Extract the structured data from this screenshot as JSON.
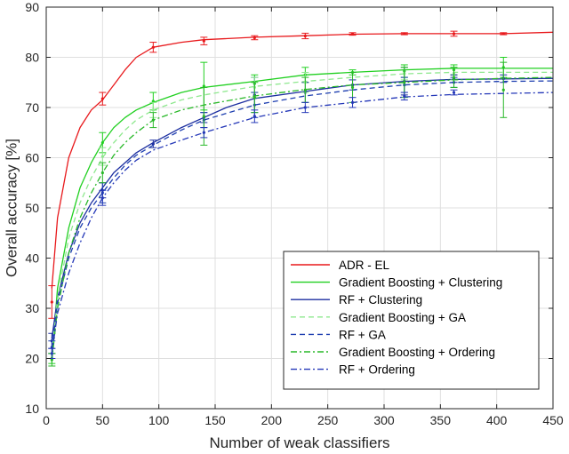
{
  "chart_data": {
    "type": "line",
    "xlabel": "Number of weak classifiers",
    "ylabel": "Overall accuracy [%]",
    "xlim": [
      0,
      450
    ],
    "ylim": [
      10,
      90
    ],
    "x_ticks": [
      0,
      50,
      100,
      150,
      200,
      250,
      300,
      350,
      400,
      450
    ],
    "y_ticks": [
      10,
      20,
      30,
      40,
      50,
      60,
      70,
      80,
      90
    ],
    "grid": true,
    "legend_position": "bottom-right",
    "series": [
      {
        "name": "ADR - EL",
        "color": "#e8191c",
        "dash": "solid",
        "x": [
          5,
          10,
          15,
          20,
          30,
          40,
          50,
          60,
          70,
          80,
          95,
          120,
          140,
          185,
          230,
          272,
          318,
          362,
          406,
          450
        ],
        "y": [
          34,
          48,
          54,
          60,
          66,
          69.5,
          71.5,
          74.5,
          77.5,
          80,
          82,
          83,
          83.5,
          84,
          84.3,
          84.6,
          84.7,
          84.7,
          84.7,
          85
        ],
        "error_bars": [
          {
            "x": 5,
            "low": 28,
            "high": 34.5
          },
          {
            "x": 50,
            "low": 70.5,
            "high": 73
          },
          {
            "x": 95,
            "low": 81,
            "high": 83
          },
          {
            "x": 140,
            "low": 82.5,
            "high": 84
          },
          {
            "x": 185,
            "low": 83.5,
            "high": 84.3
          },
          {
            "x": 230,
            "low": 83.7,
            "high": 84.8
          },
          {
            "x": 272,
            "low": 84.4,
            "high": 84.9
          },
          {
            "x": 318,
            "low": 84.5,
            "high": 84.9
          },
          {
            "x": 362,
            "low": 84.2,
            "high": 85.2
          },
          {
            "x": 406,
            "low": 84.5,
            "high": 84.9
          }
        ]
      },
      {
        "name": "Gradient Boosting + Clustering",
        "color": "#20d020",
        "dash": "solid",
        "x": [
          5,
          10,
          20,
          30,
          40,
          50,
          60,
          70,
          80,
          95,
          120,
          140,
          185,
          230,
          272,
          318,
          362,
          406,
          450
        ],
        "y": [
          20,
          34,
          46,
          54,
          59,
          63,
          66,
          68,
          69.5,
          71,
          73,
          74,
          75.2,
          76.5,
          77,
          77.5,
          77.8,
          77.8,
          77.8
        ],
        "error_bars": [
          {
            "x": 5,
            "low": 19,
            "high": 21
          },
          {
            "x": 50,
            "low": 61,
            "high": 65
          },
          {
            "x": 95,
            "low": 69.5,
            "high": 73
          },
          {
            "x": 140,
            "low": 69.5,
            "high": 79
          },
          {
            "x": 185,
            "low": 73,
            "high": 76.5
          },
          {
            "x": 230,
            "low": 75,
            "high": 78
          },
          {
            "x": 272,
            "low": 76.5,
            "high": 77.5
          },
          {
            "x": 318,
            "low": 76,
            "high": 78.5
          },
          {
            "x": 362,
            "low": 76.5,
            "high": 78.5
          },
          {
            "x": 406,
            "low": 76,
            "high": 80
          }
        ]
      },
      {
        "name": "RF + Clustering",
        "color": "#1c2ea0",
        "dash": "solid",
        "x": [
          5,
          10,
          20,
          30,
          40,
          50,
          60,
          70,
          80,
          95,
          120,
          140,
          160,
          185,
          230,
          272,
          318,
          362,
          406,
          450
        ],
        "y": [
          24,
          32,
          41,
          47,
          51,
          54,
          57,
          59,
          61,
          63,
          66,
          68,
          70,
          71.8,
          73.2,
          74.5,
          75.2,
          75.6,
          75.7,
          75.8
        ],
        "error_bars": [
          {
            "x": 5,
            "low": 22,
            "high": 25
          },
          {
            "x": 50,
            "low": 52,
            "high": 55
          },
          {
            "x": 95,
            "low": 62,
            "high": 63.5
          },
          {
            "x": 140,
            "low": 67,
            "high": 69
          },
          {
            "x": 185,
            "low": 69,
            "high": 76
          },
          {
            "x": 230,
            "low": 71,
            "high": 75
          },
          {
            "x": 272,
            "low": 73.5,
            "high": 75.5
          },
          {
            "x": 318,
            "low": 72.5,
            "high": 78
          },
          {
            "x": 362,
            "low": 75,
            "high": 76.5
          },
          {
            "x": 406,
            "low": 75,
            "high": 76.5
          }
        ]
      },
      {
        "name": "Gradient Boosting + GA",
        "color": "#8ee88e",
        "dash": "dashed",
        "x": [
          5,
          10,
          20,
          30,
          40,
          50,
          60,
          70,
          80,
          95,
          120,
          140,
          185,
          230,
          272,
          318,
          362,
          406,
          450
        ],
        "y": [
          21,
          32,
          44,
          51,
          56,
          60,
          63,
          65.5,
          67.5,
          69.5,
          71.5,
          72.5,
          74.2,
          75.2,
          76,
          76.7,
          77,
          77,
          77
        ],
        "error_bars": [
          {
            "x": 50,
            "low": 58.5,
            "high": 62
          },
          {
            "x": 95,
            "low": 68,
            "high": 71
          },
          {
            "x": 185,
            "low": 72,
            "high": 76
          },
          {
            "x": 230,
            "low": 73,
            "high": 77
          },
          {
            "x": 318,
            "low": 75.5,
            "high": 78
          },
          {
            "x": 362,
            "low": 75.5,
            "high": 78
          }
        ]
      },
      {
        "name": "RF + GA",
        "color": "#1e3fb0",
        "dash": "dashed",
        "x": [
          5,
          10,
          20,
          30,
          40,
          50,
          60,
          70,
          80,
          95,
          120,
          140,
          185,
          230,
          272,
          318,
          362,
          406,
          450
        ],
        "y": [
          22,
          31,
          40,
          46,
          50,
          53,
          56,
          58.5,
          60.5,
          62.5,
          65.5,
          67.5,
          70.5,
          72.3,
          73.5,
          74.5,
          75,
          75.2,
          75.3
        ],
        "error_bars": [
          {
            "x": 5,
            "low": 21,
            "high": 23.5
          },
          {
            "x": 50,
            "low": 51,
            "high": 55
          },
          {
            "x": 140,
            "low": 66,
            "high": 69
          },
          {
            "x": 185,
            "low": 68,
            "high": 73
          },
          {
            "x": 318,
            "low": 73,
            "high": 76
          },
          {
            "x": 362,
            "low": 74,
            "high": 76
          }
        ]
      },
      {
        "name": "Gradient Boosting + Ordering",
        "color": "#28b828",
        "dash": "dashdot",
        "x": [
          5,
          10,
          20,
          30,
          40,
          50,
          60,
          70,
          80,
          95,
          120,
          140,
          185,
          230,
          272,
          318,
          362,
          406,
          450
        ],
        "y": [
          19.5,
          30,
          41,
          48,
          53,
          57,
          60.5,
          63,
          65,
          67.5,
          69.5,
          70.5,
          72.3,
          73.6,
          74.5,
          75,
          75.5,
          75.8,
          76
        ],
        "error_bars": [
          {
            "x": 5,
            "low": 18.5,
            "high": 21
          },
          {
            "x": 50,
            "low": 55,
            "high": 59
          },
          {
            "x": 95,
            "low": 66,
            "high": 69
          },
          {
            "x": 140,
            "low": 62.5,
            "high": 74
          },
          {
            "x": 185,
            "low": 69,
            "high": 75
          },
          {
            "x": 230,
            "low": 71,
            "high": 76
          },
          {
            "x": 272,
            "low": 71,
            "high": 77
          },
          {
            "x": 318,
            "low": 72,
            "high": 78
          },
          {
            "x": 362,
            "low": 74,
            "high": 78
          },
          {
            "x": 406,
            "low": 68,
            "high": 79
          }
        ]
      },
      {
        "name": "RF + Ordering",
        "color": "#2538b8",
        "dash": "dashdot",
        "x": [
          5,
          10,
          20,
          30,
          40,
          50,
          60,
          70,
          80,
          95,
          120,
          140,
          185,
          230,
          272,
          318,
          362,
          406,
          450
        ],
        "y": [
          21,
          29,
          37,
          43,
          48,
          52,
          55,
          57.5,
          59.5,
          61.5,
          63.5,
          65,
          68,
          70,
          71,
          72.1,
          72.6,
          72.8,
          73
        ],
        "error_bars": [
          {
            "x": 5,
            "low": 20,
            "high": 22
          },
          {
            "x": 50,
            "low": 50.5,
            "high": 53.5
          },
          {
            "x": 140,
            "low": 64,
            "high": 66
          },
          {
            "x": 185,
            "low": 67,
            "high": 69.5
          },
          {
            "x": 230,
            "low": 69,
            "high": 71
          },
          {
            "x": 272,
            "low": 70,
            "high": 72
          },
          {
            "x": 318,
            "low": 71.5,
            "high": 73
          },
          {
            "x": 362,
            "low": 72.5,
            "high": 73.5
          }
        ]
      }
    ]
  }
}
